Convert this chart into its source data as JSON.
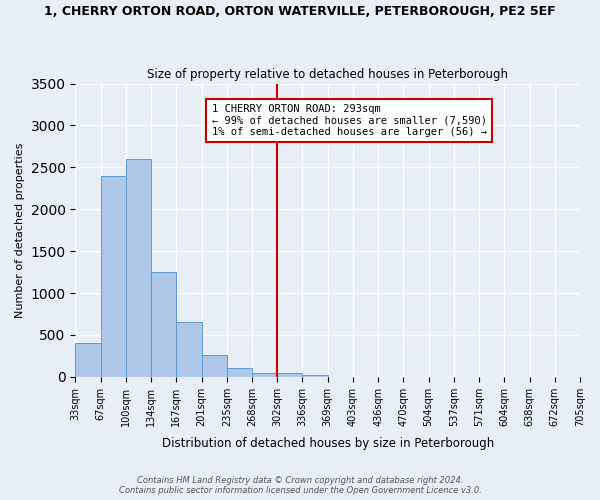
{
  "title": "1, CHERRY ORTON ROAD, ORTON WATERVILLE, PETERBOROUGH, PE2 5EF",
  "subtitle": "Size of property relative to detached houses in Peterborough",
  "xlabel": "Distribution of detached houses by size in Peterborough",
  "ylabel": "Number of detached properties",
  "bar_color": "#aec6e8",
  "bar_edge_color": "#5b9bd5",
  "background_color": "#e8eef5",
  "grid_color": "#ffffff",
  "tick_labels": [
    "33sqm",
    "67sqm",
    "100sqm",
    "134sqm",
    "167sqm",
    "201sqm",
    "235sqm",
    "268sqm",
    "302sqm",
    "336sqm",
    "369sqm",
    "403sqm",
    "436sqm",
    "470sqm",
    "504sqm",
    "537sqm",
    "571sqm",
    "604sqm",
    "638sqm",
    "672sqm",
    "705sqm"
  ],
  "bar_heights": [
    400,
    2400,
    2600,
    1250,
    650,
    260,
    100,
    50,
    50,
    25,
    0,
    0,
    0,
    0,
    0,
    0,
    0,
    0,
    0,
    0
  ],
  "ylim": [
    0,
    3500
  ],
  "yticks": [
    0,
    500,
    1000,
    1500,
    2000,
    2500,
    3000,
    3500
  ],
  "vline_pos": 7.5,
  "vline_label": "1 CHERRY ORTON ROAD: 293sqm",
  "annotation_line1": "← 99% of detached houses are smaller (7,590)",
  "annotation_line2": "1% of semi-detached houses are larger (56) →",
  "annotation_box_color": "#cc0000",
  "footer_line1": "Contains HM Land Registry data © Crown copyright and database right 2024.",
  "footer_line2": "Contains public sector information licensed under the Open Government Licence v3.0."
}
